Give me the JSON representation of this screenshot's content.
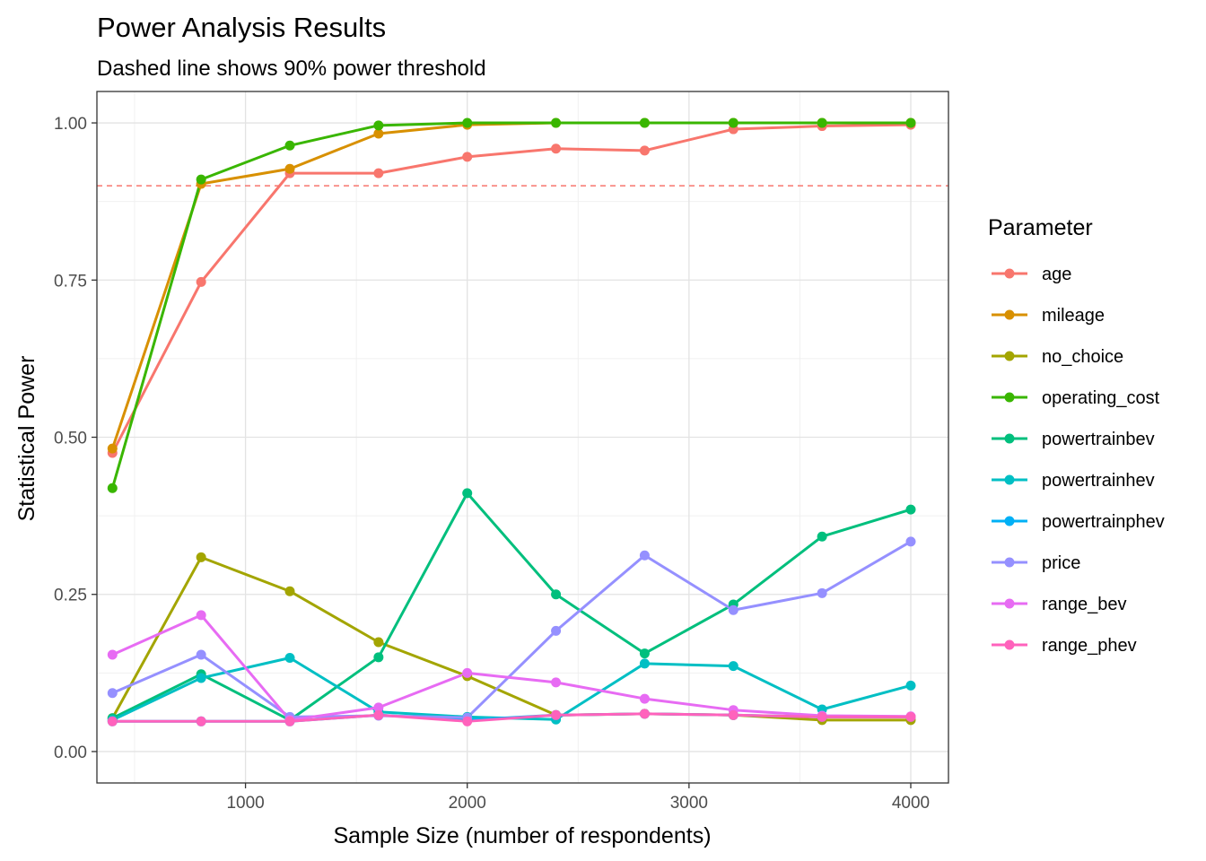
{
  "chart_data": {
    "type": "line",
    "title": "Power Analysis Results",
    "subtitle": "Dashed line shows 90% power threshold",
    "xlabel": "Sample Size (number of respondents)",
    "ylabel": "Statistical Power",
    "xlim": [
      330,
      4170
    ],
    "ylim": [
      -0.05,
      1.05
    ],
    "x_ticks": [
      1000,
      2000,
      3000,
      4000
    ],
    "x_tick_labels": [
      "1000",
      "2000",
      "3000",
      "4000"
    ],
    "x_minor": [
      500,
      1500,
      2500,
      3500
    ],
    "y_ticks": [
      0,
      0.25,
      0.5,
      0.75,
      1.0
    ],
    "y_tick_labels": [
      "0.00",
      "0.25",
      "0.50",
      "0.75",
      "1.00"
    ],
    "y_minor": [
      0.125,
      0.375,
      0.625,
      0.875
    ],
    "grid": true,
    "threshold": {
      "value": 0.9,
      "color": "#F8766D",
      "style": "dashed"
    },
    "legend": {
      "title": "Parameter",
      "position": "right"
    },
    "x": [
      400,
      800,
      1200,
      1600,
      2000,
      2400,
      2800,
      3200,
      3600,
      4000
    ],
    "series": [
      {
        "name": "age",
        "color": "#F8766D",
        "values": [
          0.475,
          0.747,
          0.92,
          0.92,
          0.946,
          0.959,
          0.956,
          0.99,
          0.995,
          0.997
        ]
      },
      {
        "name": "mileage",
        "color": "#D89000",
        "values": [
          0.482,
          0.903,
          0.927,
          0.983,
          0.997,
          1.0,
          1.0,
          1.0,
          1.0,
          1.0
        ]
      },
      {
        "name": "no_choice",
        "color": "#A3A500",
        "values": [
          0.053,
          0.309,
          0.255,
          0.174,
          0.12,
          0.058,
          0.06,
          0.058,
          0.05,
          0.05
        ]
      },
      {
        "name": "operating_cost",
        "color": "#39B600",
        "values": [
          0.419,
          0.91,
          0.964,
          0.996,
          1.0,
          1.0,
          1.0,
          1.0,
          1.0,
          1.0
        ]
      },
      {
        "name": "powertrainbev",
        "color": "#00BF7D",
        "values": [
          0.053,
          0.123,
          0.05,
          0.15,
          0.411,
          0.25,
          0.156,
          0.234,
          0.342,
          0.385
        ]
      },
      {
        "name": "powertrainhev",
        "color": "#00BFC4",
        "values": [
          0.05,
          0.117,
          0.149,
          0.063,
          0.055,
          0.051,
          0.14,
          0.136,
          0.067,
          0.105
        ]
      },
      {
        "name": "powertrainphev",
        "color": "#00B0F6",
        "values": [
          0.048,
          0.048,
          0.048,
          0.058,
          0.05,
          0.058,
          0.06,
          0.058,
          0.055,
          0.055
        ]
      },
      {
        "name": "price",
        "color": "#9590FF",
        "values": [
          0.093,
          0.154,
          0.055,
          0.057,
          0.054,
          0.192,
          0.312,
          0.225,
          0.252,
          0.334
        ]
      },
      {
        "name": "range_bev",
        "color": "#E76BF3",
        "values": [
          0.154,
          0.217,
          0.05,
          0.07,
          0.125,
          0.11,
          0.084,
          0.066,
          0.057,
          0.056
        ]
      },
      {
        "name": "range_phev",
        "color": "#FF62BC",
        "values": [
          0.048,
          0.048,
          0.048,
          0.058,
          0.048,
          0.058,
          0.06,
          0.058,
          0.055,
          0.055
        ]
      }
    ]
  }
}
